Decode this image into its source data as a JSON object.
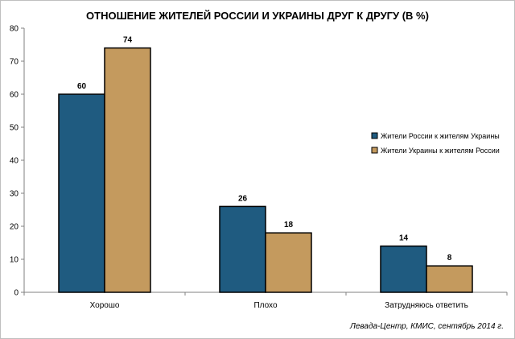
{
  "chart_data": {
    "type": "bar",
    "title": "ОТНОШЕНИЕ ЖИТЕЛЕЙ РОССИИ И УКРАИНЫ ДРУГ К ДРУГУ (В %)",
    "categories": [
      "Хорошо",
      "Плохо",
      "Затрудняюсь ответить"
    ],
    "series": [
      {
        "name": "Жители России к жителям Украины",
        "values": [
          60,
          26,
          14
        ],
        "color": "#1f5b80"
      },
      {
        "name": "Жители Украины к жителям России",
        "values": [
          74,
          18,
          8
        ],
        "color": "#c49a5e"
      }
    ],
    "ylim": [
      0,
      80
    ],
    "yticks": [
      0,
      10,
      20,
      30,
      40,
      50,
      60,
      70,
      80
    ],
    "grid": false,
    "legend": "right",
    "data_labels": true
  },
  "source": "Левада-Центр, КМИС, сентябрь 2014 г."
}
